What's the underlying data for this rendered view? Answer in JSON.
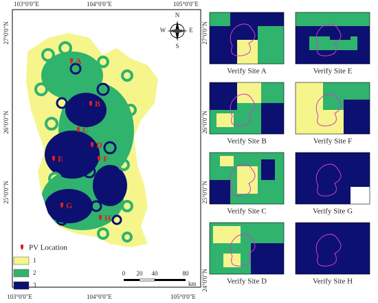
{
  "map": {
    "lon_labels_top": [
      "103°0'0\"E",
      "104°0'0\"E",
      "105°0'0\"E"
    ],
    "lon_labels_bottom": [
      "103°0'0\"E",
      "104°0'0\"E",
      "105°0'0\"E"
    ],
    "lat_labels_left": [
      "27°0'0\"N",
      "26°0'0\"N",
      "25°0'0\"N"
    ],
    "lat_labels_right": [
      "27°0'0\"N",
      "26°0'0\"N",
      "25°0'0\"N",
      "24°0'0\"N"
    ],
    "compass": [
      "N",
      "S",
      "E",
      "W"
    ],
    "sites": [
      "A",
      "B",
      "C",
      "D",
      "E",
      "F",
      "G",
      "H"
    ],
    "legend": {
      "title": "PV Location",
      "classes": [
        "1",
        "2",
        "3"
      ]
    },
    "scale": {
      "ticks": [
        0,
        20,
        40,
        80
      ],
      "unit": "km"
    }
  },
  "panels": [
    "Verify Site A",
    "Verify Site E",
    "Verify Site B",
    "Verify Site F",
    "Verify Site C",
    "Verify Site G",
    "Verify Site D",
    "Verify Site H"
  ]
}
